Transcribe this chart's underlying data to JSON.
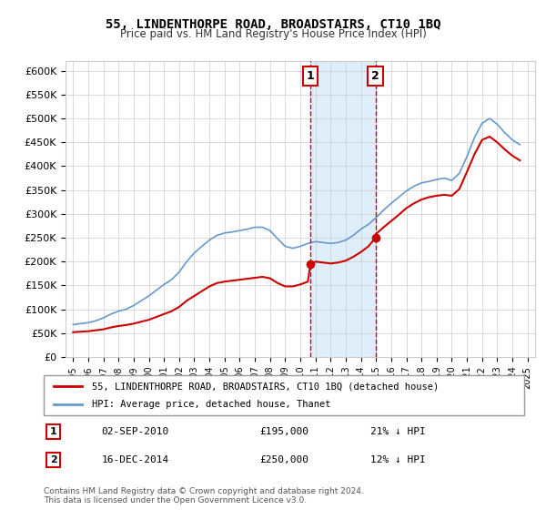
{
  "title": "55, LINDENTHORPE ROAD, BROADSTAIRS, CT10 1BQ",
  "subtitle": "Price paid vs. HM Land Registry's House Price Index (HPI)",
  "legend_line1": "55, LINDENTHORPE ROAD, BROADSTAIRS, CT10 1BQ (detached house)",
  "legend_line2": "HPI: Average price, detached house, Thanet",
  "footer": "Contains HM Land Registry data © Crown copyright and database right 2024.\nThis data is licensed under the Open Government Licence v3.0.",
  "annotation1_label": "1",
  "annotation1_date": "02-SEP-2010",
  "annotation1_price": "£195,000",
  "annotation1_hpi": "21% ↓ HPI",
  "annotation1_year": 2010.67,
  "annotation1_price_val": 195000,
  "annotation2_label": "2",
  "annotation2_date": "16-DEC-2014",
  "annotation2_price": "£250,000",
  "annotation2_hpi": "12% ↓ HPI",
  "annotation2_year": 2014.96,
  "annotation2_price_val": 250000,
  "hpi_years": [
    1995,
    1995.5,
    1996,
    1996.5,
    1997,
    1997.5,
    1998,
    1998.5,
    1999,
    1999.5,
    2000,
    2000.5,
    2001,
    2001.5,
    2002,
    2002.5,
    2003,
    2003.5,
    2004,
    2004.5,
    2005,
    2005.5,
    2006,
    2006.5,
    2007,
    2007.5,
    2008,
    2008.5,
    2009,
    2009.5,
    2010,
    2010.5,
    2011,
    2011.5,
    2012,
    2012.5,
    2013,
    2013.5,
    2014,
    2014.5,
    2015,
    2015.5,
    2016,
    2016.5,
    2017,
    2017.5,
    2018,
    2018.5,
    2019,
    2019.5,
    2020,
    2020.5,
    2021,
    2021.5,
    2022,
    2022.5,
    2023,
    2023.5,
    2024,
    2024.5
  ],
  "hpi_values": [
    68000,
    70000,
    72000,
    76000,
    82000,
    90000,
    96000,
    100000,
    108000,
    118000,
    128000,
    140000,
    152000,
    162000,
    178000,
    200000,
    218000,
    232000,
    245000,
    255000,
    260000,
    262000,
    265000,
    268000,
    272000,
    272000,
    265000,
    248000,
    232000,
    228000,
    232000,
    238000,
    242000,
    240000,
    238000,
    240000,
    245000,
    255000,
    268000,
    278000,
    292000,
    308000,
    322000,
    335000,
    348000,
    358000,
    365000,
    368000,
    372000,
    375000,
    370000,
    385000,
    420000,
    460000,
    490000,
    500000,
    488000,
    470000,
    455000,
    445000
  ],
  "red_years": [
    1995,
    1995.5,
    1996,
    1996.5,
    1997,
    1997.5,
    1998,
    1998.5,
    1999,
    1999.5,
    2000,
    2000.5,
    2001,
    2001.5,
    2002,
    2002.5,
    2003,
    2003.5,
    2004,
    2004.5,
    2005,
    2005.5,
    2006,
    2006.5,
    2007,
    2007.5,
    2008,
    2008.5,
    2009,
    2009.5,
    2010,
    2010.5,
    2010.67,
    2011,
    2011.5,
    2012,
    2012.5,
    2013,
    2013.5,
    2014,
    2014.5,
    2014.96,
    2015,
    2015.5,
    2016,
    2016.5,
    2017,
    2017.5,
    2018,
    2018.5,
    2019,
    2019.5,
    2020,
    2020.5,
    2021,
    2021.5,
    2022,
    2022.5,
    2023,
    2023.5,
    2024,
    2024.5
  ],
  "red_values": [
    52000,
    53000,
    54000,
    56000,
    58000,
    62000,
    65000,
    67000,
    70000,
    74000,
    78000,
    84000,
    90000,
    96000,
    105000,
    118000,
    128000,
    138000,
    148000,
    155000,
    158000,
    160000,
    162000,
    164000,
    166000,
    168000,
    165000,
    155000,
    148000,
    148000,
    152000,
    158000,
    195000,
    200000,
    198000,
    196000,
    198000,
    202000,
    210000,
    220000,
    232000,
    250000,
    258000,
    272000,
    285000,
    298000,
    312000,
    322000,
    330000,
    335000,
    338000,
    340000,
    338000,
    352000,
    388000,
    425000,
    455000,
    462000,
    450000,
    435000,
    422000,
    412000
  ],
  "ylim": [
    0,
    620000
  ],
  "yticks": [
    0,
    50000,
    100000,
    150000,
    200000,
    250000,
    300000,
    350000,
    400000,
    450000,
    500000,
    550000,
    600000
  ],
  "ytick_labels": [
    "£0",
    "£50K",
    "£100K",
    "£150K",
    "£200K",
    "£250K",
    "£300K",
    "£350K",
    "£400K",
    "£450K",
    "£500K",
    "£550K",
    "£600K"
  ],
  "xlim": [
    1994.5,
    2025.5
  ],
  "xticks": [
    1995,
    1996,
    1997,
    1998,
    1999,
    2000,
    2001,
    2002,
    2003,
    2004,
    2005,
    2006,
    2007,
    2008,
    2009,
    2010,
    2011,
    2012,
    2013,
    2014,
    2015,
    2016,
    2017,
    2018,
    2019,
    2020,
    2021,
    2022,
    2023,
    2024,
    2025
  ],
  "red_color": "#cc0000",
  "blue_color": "#6699cc",
  "shade_xmin": 2010.67,
  "shade_xmax": 2014.96,
  "shade_color": "#d0e8f8"
}
